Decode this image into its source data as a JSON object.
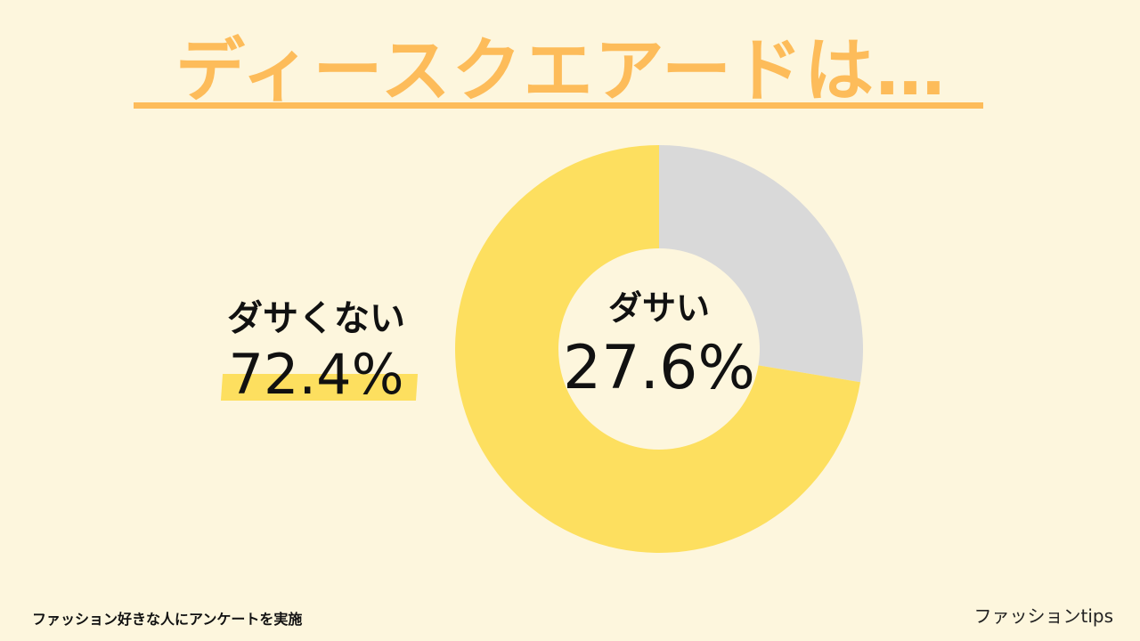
{
  "header": {
    "title": "ディースクエアードは…"
  },
  "chart_data": {
    "type": "pie",
    "donut": true,
    "slices": [
      {
        "label": "ダサい",
        "value": 27.6,
        "display": "27.6%",
        "color": "#d9d9d9"
      },
      {
        "label": "ダサくない",
        "value": 72.4,
        "display": "72.4%",
        "color": "#fddf5f"
      }
    ]
  },
  "colors": {
    "background": "#fdf6dd",
    "title": "#fdbc5a",
    "highlight": "#fddf5f"
  },
  "footer": {
    "note": "ファッション好きな人にアンケートを実施",
    "brand": "ファッションtips"
  }
}
